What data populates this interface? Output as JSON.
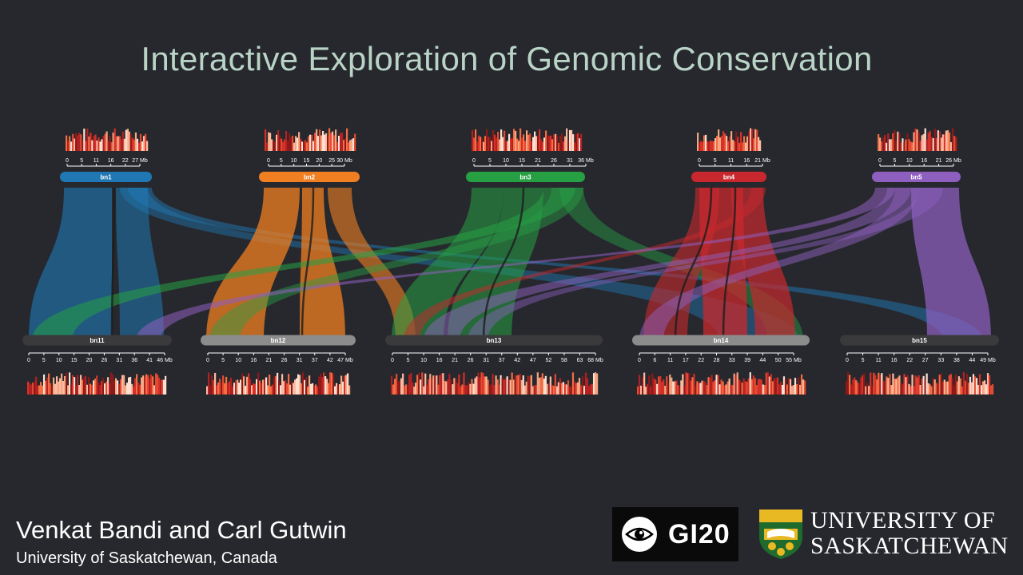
{
  "title": "Interactive Exploration of Genomic Conservation",
  "authors": "Venkat Bandi and Carl Gutwin",
  "affiliation": "University of Saskatchewan, Canada",
  "logos": {
    "gi_text": "GI20",
    "university_line1": "UNIVERSITY OF",
    "university_line2": "SASKATCHEWAN"
  },
  "colors": {
    "background": "#26282d",
    "title": "#b9d3c6",
    "bn1": "#1f78b4",
    "bn2": "#f07f22",
    "bn3": "#27a044",
    "bn4": "#c8282d",
    "bn5": "#8f5fc0",
    "bottom_dark": "#3a3a3c",
    "bottom_light": "#8c8c8c"
  },
  "top_chromosomes": [
    {
      "label": "bn1",
      "color": "#1f78b4",
      "ticks": [
        "0",
        "5",
        "11",
        "16",
        "22",
        "27"
      ],
      "unit": "Mb"
    },
    {
      "label": "bn2",
      "color": "#f07f22",
      "ticks": [
        "0",
        "5",
        "10",
        "15",
        "20",
        "25",
        "30"
      ],
      "unit": "Mb"
    },
    {
      "label": "bn3",
      "color": "#27a044",
      "ticks": [
        "0",
        "5",
        "10",
        "15",
        "21",
        "26",
        "31",
        "36"
      ],
      "unit": "Mb"
    },
    {
      "label": "bn4",
      "color": "#c8282d",
      "ticks": [
        "0",
        "5",
        "11",
        "16",
        "21"
      ],
      "unit": "Mb"
    },
    {
      "label": "bn5",
      "color": "#8f5fc0",
      "ticks": [
        "0",
        "5",
        "10",
        "16",
        "21",
        "26"
      ],
      "unit": "Mb"
    }
  ],
  "bottom_chromosomes": [
    {
      "label": "bn11",
      "ticks": [
        "0",
        "5",
        "10",
        "15",
        "20",
        "26",
        "31",
        "36",
        "41",
        "46"
      ],
      "unit": "Mb"
    },
    {
      "label": "bn12",
      "ticks": [
        "0",
        "5",
        "10",
        "16",
        "21",
        "26",
        "31",
        "37",
        "42",
        "47"
      ],
      "unit": "Mb"
    },
    {
      "label": "bn13",
      "ticks": [
        "0",
        "5",
        "10",
        "16",
        "21",
        "26",
        "31",
        "37",
        "42",
        "47",
        "52",
        "58",
        "63",
        "68"
      ],
      "unit": "Mb"
    },
    {
      "label": "bn14",
      "ticks": [
        "0",
        "6",
        "11",
        "17",
        "22",
        "28",
        "33",
        "39",
        "44",
        "50",
        "55"
      ],
      "unit": "Mb"
    },
    {
      "label": "bn15",
      "ticks": [
        "0",
        "5",
        "11",
        "16",
        "22",
        "27",
        "33",
        "38",
        "44",
        "49"
      ],
      "unit": "Mb"
    }
  ]
}
